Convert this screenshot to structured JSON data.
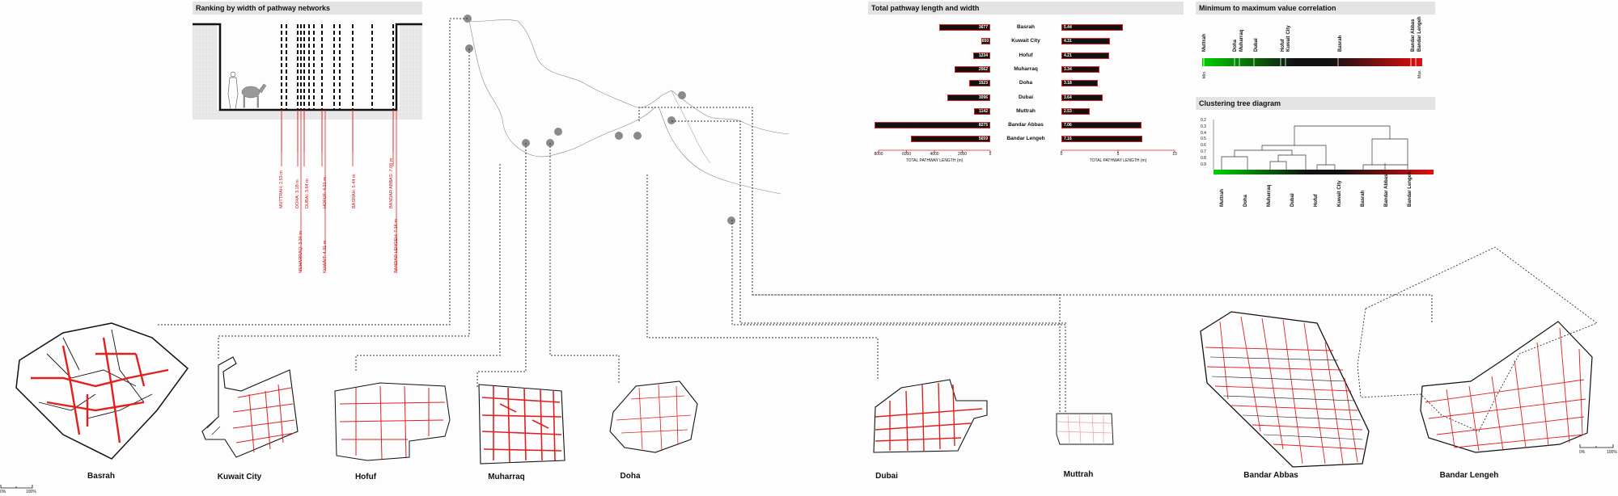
{
  "ranking_panel": {
    "title": "Ranking by width of pathway networks",
    "labels_top": [
      "MUTTRAH: 2.53 m",
      "DOHA: 3.18 m",
      "DUBAI: 3.64 m",
      "HOFUF: 4.21 m",
      "BASRAH: 5.44 m",
      "BANDAR ABBAS: 7.06 m"
    ],
    "labels_bottom": [
      "MUHARRAQ: 3.34 m",
      "KUWAIT: 4.31 m",
      "BANDAR LENGEH: 7.16 m"
    ]
  },
  "length_panel": {
    "title": "Total pathway length and width",
    "rows": [
      {
        "city": "Basrah",
        "length": "3677",
        "width": "5.44"
      },
      {
        "city": "Kuwait City",
        "length": "650",
        "width": "4.31"
      },
      {
        "city": "Hofuf",
        "length": "1234",
        "width": "4.21"
      },
      {
        "city": "Muharraq",
        "length": "2562",
        "width": "3.34"
      },
      {
        "city": "Doha",
        "length": "1523",
        "width": "3.18"
      },
      {
        "city": "Dubai",
        "length": "3096",
        "width": "3.64"
      },
      {
        "city": "Muttrah",
        "length": "1142",
        "width": "2.53"
      },
      {
        "city": "Bandar Abbas",
        "length": "8275",
        "width": "7.06"
      },
      {
        "city": "Bandar Lengeh",
        "length": "5659",
        "width": "7.16"
      }
    ],
    "left_axis_ticks": [
      "8000",
      "6000",
      "4000",
      "2000",
      "0"
    ],
    "left_axis_label": "TOTAL PATHWAY LENGTH (m)",
    "right_axis_ticks": [
      "0",
      "5",
      "10"
    ],
    "right_axis_label": "TOTAL PATHWAY LENGTH (m)"
  },
  "chart_data": {
    "type": "bar",
    "categories": [
      "Basrah",
      "Kuwait City",
      "Hofuf",
      "Muharraq",
      "Doha",
      "Dubai",
      "Muttrah",
      "Bandar Abbas",
      "Bandar Lengeh"
    ],
    "series": [
      {
        "values": [
          3677,
          650,
          1234,
          2562,
          1523,
          3096,
          1142,
          8275,
          5659
        ]
      },
      {
        "values": [
          5.44,
          4.31,
          4.21,
          3.34,
          3.18,
          3.64,
          2.53,
          7.06,
          7.16
        ]
      }
    ],
    "xlabel": "TOTAL PATHWAY LENGTH (m)",
    "xlim_left": [
      0,
      8000
    ],
    "xlim_right": [
      0,
      10
    ]
  },
  "correlation_panel": {
    "title": "Minimum to maximum value correlation",
    "cities": [
      "Muttrah",
      "Doha",
      "Muharraq",
      "Dubai",
      "Hofuf",
      "Kuwait City",
      "Basrah",
      "Bandar Abbas",
      "Bandar Lengeh"
    ],
    "min_label": "Min.",
    "max_label": "Max.",
    "low_color": "#00d000",
    "mid_color": "#111111",
    "high_color": "#e01010"
  },
  "cluster_panel": {
    "title": "Clustering tree diagram",
    "scale": [
      "0.2",
      "0.3",
      "0.4",
      "0.5",
      "0.6",
      "0.7",
      "0.8",
      "0.9"
    ],
    "leaves": [
      "Muttrah",
      "Doha",
      "Muharraq",
      "Dubai",
      "Hofuf",
      "Kuwait City",
      "Basrah",
      "Bandar Abbas",
      "Bandar Lengeh"
    ]
  },
  "city_names": [
    "Basrah",
    "Kuwait City",
    "Hofuf",
    "Muharraq",
    "Doha",
    "Dubai",
    "Muttrah",
    "Bandar Abbas",
    "Bandar Lengeh"
  ],
  "scale_bar": {
    "start": "0%",
    "end": "100%"
  }
}
